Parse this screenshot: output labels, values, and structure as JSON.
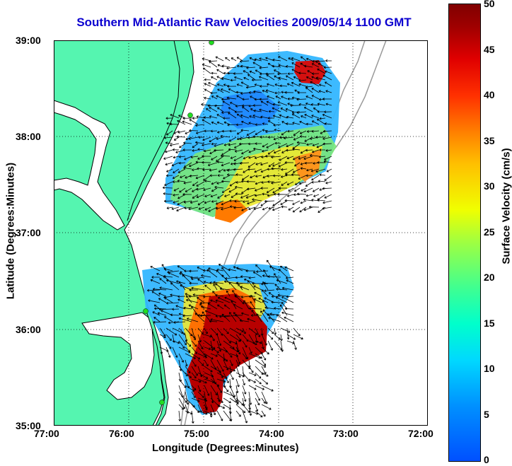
{
  "title": "Southern Mid-Atlantic Raw Velocities 2009/05/14 1100 GMT",
  "x_axis": {
    "label": "Longitude (Degrees:Minutes)",
    "ticks": [
      "77:00",
      "76:00",
      "75:00",
      "74:00",
      "73:00",
      "72:00"
    ],
    "range": [
      -77,
      -72
    ]
  },
  "y_axis": {
    "label": "Latitude (Degrees:Minutes)",
    "ticks": [
      "39:00",
      "38:00",
      "37:00",
      "36:00",
      "35:00"
    ],
    "range": [
      35,
      39
    ]
  },
  "colorbar": {
    "label": "Surface Velocity (cm/s)",
    "ticks": [
      "50",
      "45",
      "40",
      "35",
      "30",
      "25",
      "20",
      "15",
      "10",
      "5",
      "0"
    ],
    "range": [
      0,
      50
    ]
  },
  "colors": {
    "title": "#0b00d0",
    "land": "#55f5b0",
    "sea": "#ffffff",
    "isobath": "#999999"
  },
  "grid": true
}
